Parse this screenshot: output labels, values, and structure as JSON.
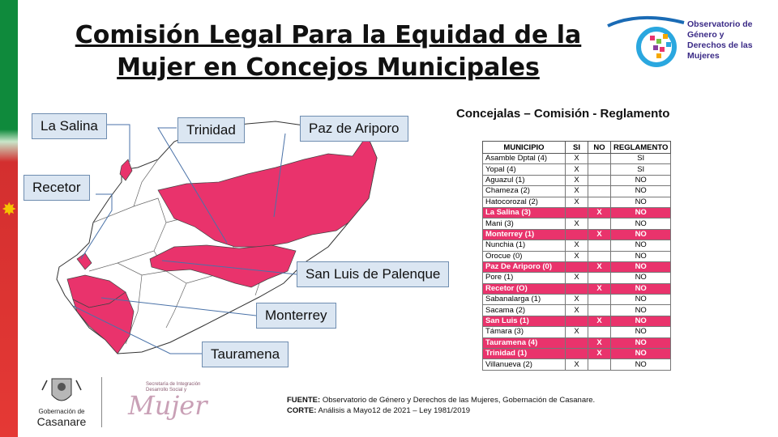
{
  "title": "Comisión Legal Para la Equidad de la Mujer en Concejos Municipales",
  "logo": {
    "lines": [
      "Observatorio de",
      "Género y",
      "Derechos de las",
      "Mujeres"
    ]
  },
  "map_labels": {
    "la_salina": "La Salina",
    "trinidad": "Trinidad",
    "paz_de_ariporo": "Paz de Ariporo",
    "recetor": "Recetor",
    "san_luis": "San Luis de Palenque",
    "monterrey": "Monterrey",
    "tauramena": "Tauramena"
  },
  "colors": {
    "highlight": "#e9336c",
    "label_bg": "#dbe6f2",
    "label_border": "#6f8db0"
  },
  "table": {
    "subtitle": "Concejalas – Comisión - Reglamento",
    "headers": [
      "MUNICIPIO",
      "SI",
      "NO",
      "REGLAMENTO"
    ],
    "rows": [
      {
        "m": "Asamble Dptal (4)",
        "si": "X",
        "no": "",
        "r": "SI",
        "hl": false
      },
      {
        "m": "Yopal (4)",
        "si": "X",
        "no": "",
        "r": "SI",
        "hl": false
      },
      {
        "m": "Aguazul (1)",
        "si": "X",
        "no": "",
        "r": "NO",
        "hl": false
      },
      {
        "m": "Chameza (2)",
        "si": "X",
        "no": "",
        "r": "NO",
        "hl": false
      },
      {
        "m": "Hatocorozal (2)",
        "si": "X",
        "no": "",
        "r": "NO",
        "hl": false
      },
      {
        "m": "La Salina (3)",
        "si": "",
        "no": "X",
        "r": "NO",
        "hl": true
      },
      {
        "m": "Mani (3)",
        "si": "X",
        "no": "",
        "r": "NO",
        "hl": false
      },
      {
        "m": "Monterrey (1)",
        "si": "",
        "no": "X",
        "r": "NO",
        "hl": true
      },
      {
        "m": "Nunchia (1)",
        "si": "X",
        "no": "",
        "r": "NO",
        "hl": false
      },
      {
        "m": "Orocue (0)",
        "si": "X",
        "no": "",
        "r": "NO",
        "hl": false
      },
      {
        "m": "Paz De Ariporo (0)",
        "si": "",
        "no": "X",
        "r": "NO",
        "hl": true
      },
      {
        "m": "Pore (1)",
        "si": "X",
        "no": "",
        "r": "NO",
        "hl": false
      },
      {
        "m": "Recetor (O)",
        "si": "",
        "no": "X",
        "r": "NO",
        "hl": true
      },
      {
        "m": "Sabanalarga (1)",
        "si": "X",
        "no": "",
        "r": "NO",
        "hl": false
      },
      {
        "m": "Sacama (2)",
        "si": "X",
        "no": "",
        "r": "NO",
        "hl": false
      },
      {
        "m": "San Luis (1)",
        "si": "",
        "no": "X",
        "r": "NO",
        "hl": true
      },
      {
        "m": "Támara (3)",
        "si": "X",
        "no": "",
        "r": "NO",
        "hl": false
      },
      {
        "m": "Tauramena (4)",
        "si": "",
        "no": "X",
        "r": "NO",
        "hl": true
      },
      {
        "m": "Trinidad (1)",
        "si": "",
        "no": "X",
        "r": "NO",
        "hl": true
      },
      {
        "m": "Villanueva (2)",
        "si": "X",
        "no": "",
        "r": "NO",
        "hl": false
      }
    ]
  },
  "footer": {
    "gob_small": "Gobernación de",
    "gob_big": "Casanare",
    "muj_small": "Secretaría de Integración Desarrollo Social y",
    "muj_big": "Mujer",
    "fuente_label": "FUENTE:",
    "fuente_text": "Observatorio de Género y Derechos de las Mujeres, Gobernación de Casanare.",
    "corte_label": "CORTE:",
    "corte_text": "Análisis a Mayo12 de 2021 – Ley 1981/2019"
  }
}
